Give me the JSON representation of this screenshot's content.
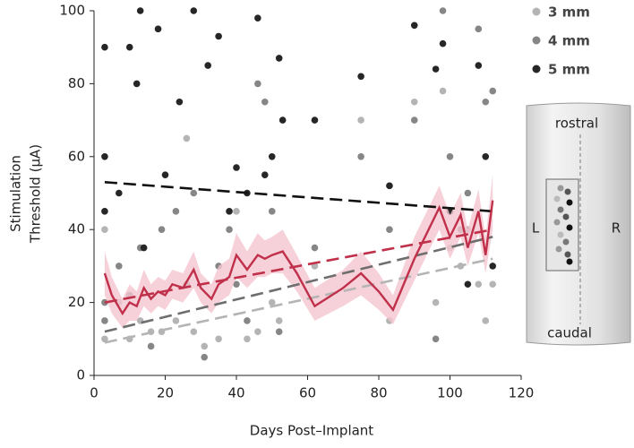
{
  "chart_data": {
    "type": "scatter",
    "xlabel": "Days Post–Implant",
    "ylabel": [
      "Stimulation",
      "Threshold (μA)"
    ],
    "xlim": [
      0,
      120
    ],
    "ylim": [
      0,
      100
    ],
    "xticks": [
      0,
      20,
      40,
      60,
      80,
      100,
      120
    ],
    "yticks": [
      0,
      20,
      40,
      60,
      80,
      100
    ],
    "legend": "top-right",
    "series": [
      {
        "name": "3 mm",
        "color": "#b4b4b4",
        "x": [
          3,
          3,
          7,
          10,
          13,
          16,
          19,
          23,
          26,
          28,
          31,
          35,
          40,
          43,
          46,
          50,
          52,
          62,
          75,
          83,
          90,
          96,
          98,
          100,
          103,
          105,
          108,
          110,
          112
        ],
        "values": [
          10,
          40,
          20,
          10,
          15,
          12,
          12,
          15,
          65,
          12,
          8,
          10,
          45,
          10,
          12,
          20,
          15,
          30,
          70,
          15,
          75,
          20,
          78,
          35,
          30,
          40,
          25,
          15,
          25
        ]
      },
      {
        "name": "4 mm",
        "color": "#868686",
        "x": [
          3,
          3,
          7,
          10,
          13,
          16,
          19,
          23,
          26,
          28,
          31,
          35,
          38,
          40,
          43,
          46,
          48,
          50,
          52,
          62,
          75,
          83,
          90,
          96,
          98,
          100,
          103,
          105,
          108,
          110,
          112
        ],
        "values": [
          20,
          15,
          30,
          22,
          35,
          8,
          40,
          45,
          25,
          50,
          5,
          30,
          40,
          25,
          15,
          80,
          75,
          45,
          12,
          35,
          60,
          40,
          70,
          10,
          100,
          60,
          40,
          50,
          95,
          75,
          78
        ]
      },
      {
        "name": "5 mm",
        "color": "#262626",
        "x": [
          3,
          3,
          3,
          7,
          10,
          12,
          13,
          14,
          18,
          20,
          24,
          28,
          32,
          35,
          38,
          40,
          43,
          46,
          48,
          50,
          52,
          53,
          62,
          75,
          83,
          90,
          96,
          98,
          100,
          105,
          108,
          110,
          112
        ],
        "values": [
          90,
          45,
          60,
          50,
          90,
          80,
          100,
          35,
          95,
          55,
          75,
          100,
          85,
          93,
          45,
          57,
          50,
          98,
          55,
          60,
          87,
          70,
          70,
          82,
          52,
          96,
          84,
          91,
          45,
          25,
          85,
          60,
          30
        ]
      }
    ],
    "trends": [
      {
        "color": "#111111",
        "x": [
          3,
          112
        ],
        "values": [
          53,
          45
        ]
      },
      {
        "color": "#b4b4b4",
        "x": [
          3,
          112
        ],
        "values": [
          9,
          32
        ]
      },
      {
        "color": "#6e6e6e",
        "x": [
          3,
          112
        ],
        "values": [
          12,
          38
        ]
      },
      {
        "color": "#c0304a",
        "x": [
          3,
          112
        ],
        "values": [
          20,
          40
        ]
      }
    ],
    "mean": {
      "color": "#c0304a",
      "band_color": "#f5c6cf",
      "x": [
        3,
        5,
        8,
        10,
        12,
        14,
        16,
        18,
        20,
        22,
        25,
        28,
        30,
        33,
        35,
        38,
        40,
        43,
        46,
        48,
        50,
        53,
        57,
        62,
        70,
        75,
        80,
        84,
        90,
        97,
        100,
        103,
        105,
        108,
        110,
        112
      ],
      "values": [
        28,
        22,
        17,
        20,
        19,
        24,
        21,
        23,
        22,
        25,
        24,
        29,
        24,
        21,
        25,
        27,
        33,
        29,
        33,
        32,
        33,
        34,
        28,
        19,
        24,
        28,
        23,
        18,
        32,
        46,
        38,
        44,
        35,
        45,
        33,
        48
      ],
      "lower": [
        22,
        17,
        13,
        15,
        15,
        19,
        17,
        19,
        18,
        21,
        20,
        24,
        20,
        17,
        20,
        22,
        27,
        24,
        27,
        27,
        28,
        28,
        23,
        15,
        19,
        22,
        18,
        14,
        26,
        40,
        32,
        38,
        30,
        39,
        28,
        40
      ],
      "upper": [
        34,
        27,
        21,
        25,
        23,
        29,
        25,
        27,
        26,
        29,
        28,
        34,
        28,
        25,
        30,
        32,
        39,
        34,
        39,
        37,
        38,
        40,
        33,
        24,
        29,
        34,
        28,
        22,
        38,
        52,
        44,
        50,
        40,
        51,
        38,
        55
      ]
    },
    "schematic": {
      "top": "rostral",
      "bottom": "caudal",
      "left": "L",
      "right": "R"
    }
  }
}
